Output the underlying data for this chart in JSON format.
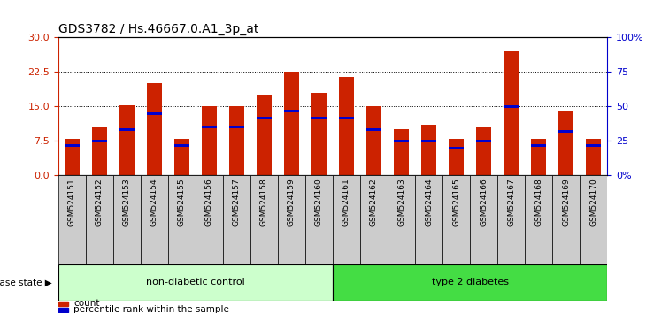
{
  "title": "GDS3782 / Hs.46667.0.A1_3p_at",
  "samples": [
    "GSM524151",
    "GSM524152",
    "GSM524153",
    "GSM524154",
    "GSM524155",
    "GSM524156",
    "GSM524157",
    "GSM524158",
    "GSM524159",
    "GSM524160",
    "GSM524161",
    "GSM524162",
    "GSM524163",
    "GSM524164",
    "GSM524165",
    "GSM524166",
    "GSM524167",
    "GSM524168",
    "GSM524169",
    "GSM524170"
  ],
  "count_values": [
    8.0,
    10.5,
    15.2,
    20.0,
    8.0,
    15.0,
    15.0,
    17.5,
    22.5,
    18.0,
    21.5,
    15.0,
    10.0,
    11.0,
    8.0,
    10.5,
    27.0,
    8.0,
    14.0,
    8.0
  ],
  "percentile_values": [
    6.5,
    7.5,
    10.0,
    13.5,
    6.5,
    10.5,
    10.5,
    12.5,
    14.0,
    12.5,
    12.5,
    10.0,
    7.5,
    7.5,
    6.0,
    7.5,
    15.0,
    6.5,
    9.5,
    6.5
  ],
  "bar_color": "#CC2200",
  "percentile_color": "#0000CC",
  "ylim_left": [
    0,
    30
  ],
  "yticks_left": [
    0,
    7.5,
    15,
    22.5,
    30
  ],
  "ylim_right": [
    0,
    100
  ],
  "yticks_right": [
    0,
    25,
    50,
    75,
    100
  ],
  "yticklabels_right": [
    "0%",
    "25",
    "50",
    "75",
    "100%"
  ],
  "groups": [
    {
      "label": "non-diabetic control",
      "start": 0,
      "end": 10,
      "color": "#ccffcc",
      "edgecolor": "#000000"
    },
    {
      "label": "type 2 diabetes",
      "start": 10,
      "end": 20,
      "color": "#44dd44",
      "edgecolor": "#000000"
    }
  ],
  "group_label_left": "disease state",
  "legend_count_label": "count",
  "legend_percentile_label": "percentile rank within the sample",
  "background_color": "#ffffff",
  "bar_width": 0.55,
  "grid_color": "#000000",
  "tick_label_color_left": "#CC2200",
  "tick_label_color_right": "#0000CC",
  "blue_bar_height": 0.6,
  "xtick_bg_color": "#cccccc"
}
